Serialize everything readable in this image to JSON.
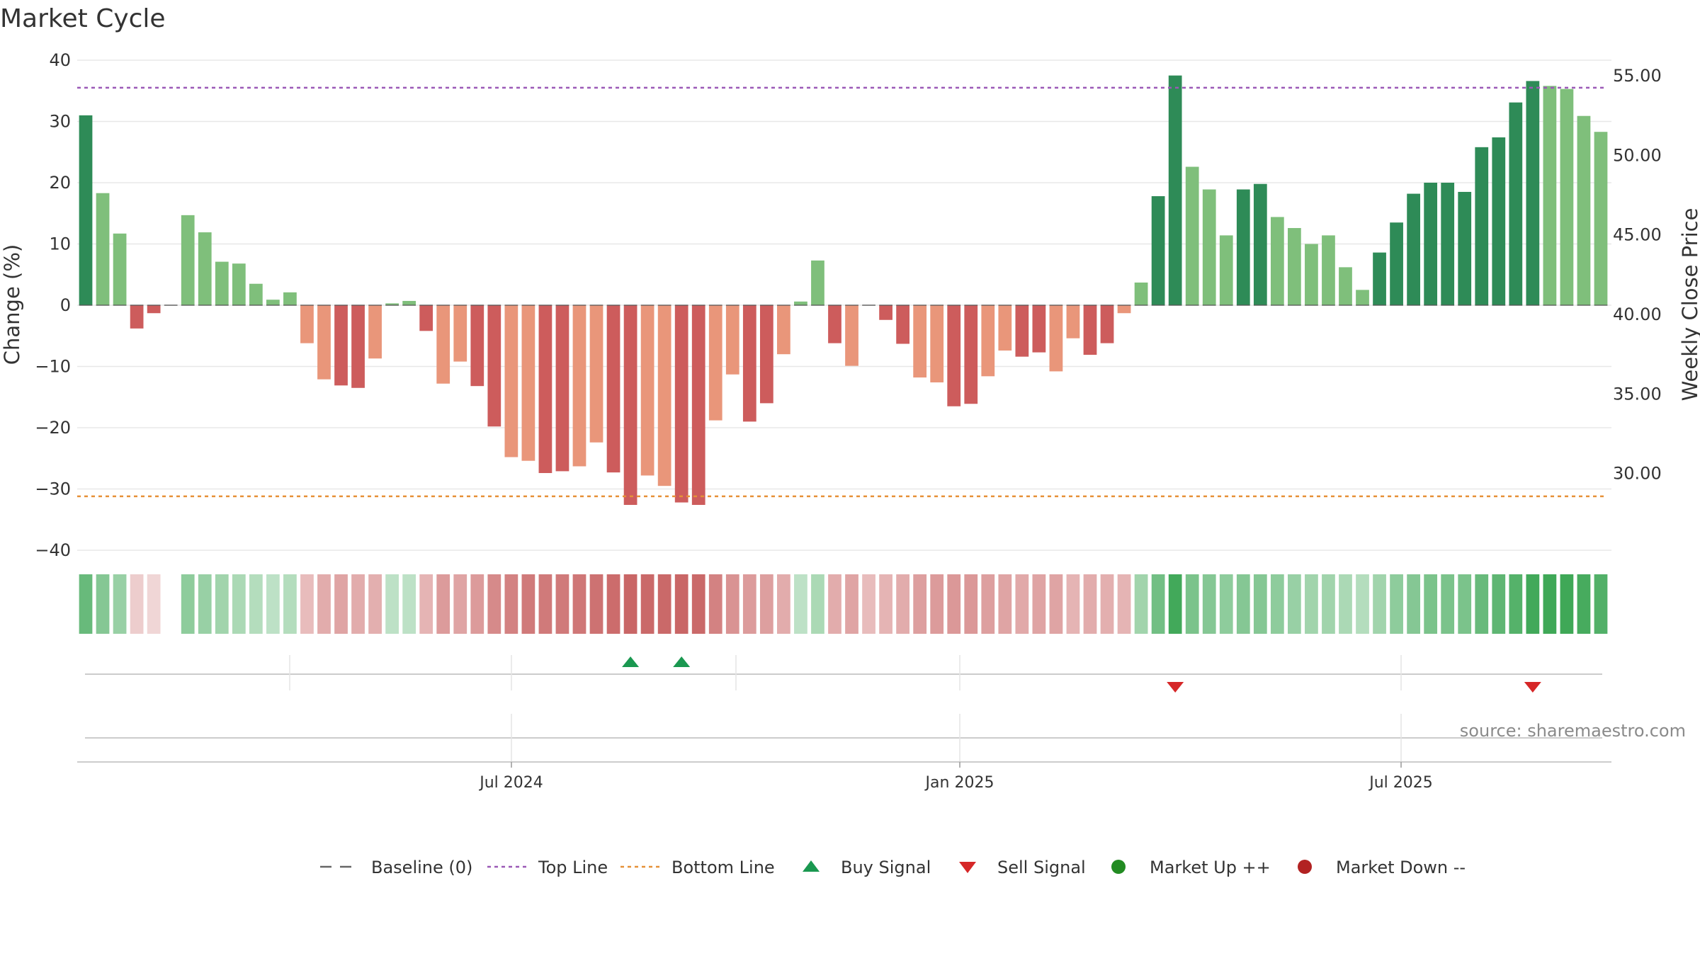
{
  "title": "Market Cycle",
  "source": "source: sharemaestro.com",
  "chart_data": {
    "type": "bar",
    "title": "Market Cycle",
    "ylabel_left": "Change (%)",
    "ylabel_right": "Weekly Close Price",
    "ylim_left": [
      -40,
      40
    ],
    "left_ticks": [
      "40",
      "30",
      "20",
      "10",
      "0",
      "−10",
      "−20",
      "−30",
      "−40"
    ],
    "ylim_right": [
      25.0,
      55.0
    ],
    "right_ticks": [
      "55.00",
      "50.00",
      "45.00",
      "40.00",
      "35.00",
      "30.00"
    ],
    "x_tick_labels": [
      "Jul 2024",
      "Jan 2025",
      "Jul 2025"
    ],
    "grid": true,
    "top_line": 35.5,
    "bottom_line": -31.2,
    "baseline": 0,
    "series": [
      {
        "name": "Change (%)",
        "values": [
          31.0,
          18.3,
          11.7,
          -3.8,
          -1.3,
          0.0,
          14.7,
          11.9,
          7.1,
          6.8,
          3.5,
          0.9,
          2.1,
          -6.2,
          -12.1,
          -13.1,
          -13.5,
          -8.7,
          0.3,
          0.7,
          -4.2,
          -12.8,
          -9.2,
          -13.2,
          -19.8,
          -24.8,
          -25.4,
          -27.4,
          -27.1,
          -26.3,
          -22.4,
          -27.3,
          -32.6,
          -27.8,
          -29.5,
          -32.2,
          -32.6,
          -18.8,
          -11.3,
          -19.0,
          -16.0,
          -8.0,
          0.6,
          7.3,
          -6.2,
          -9.9,
          0.0,
          -2.4,
          -6.3,
          -11.8,
          -12.6,
          -16.5,
          -16.1,
          -11.6,
          -7.4,
          -8.4,
          -7.7,
          -10.8,
          -5.4,
          -8.1,
          -6.2,
          -1.3,
          3.7,
          17.8,
          37.5,
          22.6,
          18.9,
          11.4,
          18.9,
          19.8,
          14.4,
          12.6,
          10.0,
          11.4,
          6.2,
          2.5,
          8.6,
          13.5,
          18.2,
          20.0,
          20.0,
          18.5,
          25.8,
          27.4,
          33.1,
          36.6,
          35.8,
          35.3,
          30.9,
          28.3
        ]
      }
    ],
    "heat_strip": [
      0.6,
      0.45,
      0.35,
      -0.1,
      -0.05,
      null,
      0.4,
      0.35,
      0.3,
      0.25,
      0.2,
      0.15,
      0.2,
      -0.2,
      -0.3,
      -0.35,
      -0.3,
      -0.28,
      0.15,
      0.15,
      -0.25,
      -0.4,
      -0.35,
      -0.4,
      -0.5,
      -0.55,
      -0.6,
      -0.6,
      -0.6,
      -0.62,
      -0.65,
      -0.68,
      -0.72,
      -0.7,
      -0.7,
      -0.72,
      -0.7,
      -0.55,
      -0.45,
      -0.4,
      -0.38,
      -0.3,
      0.15,
      0.25,
      -0.3,
      -0.35,
      -0.2,
      -0.25,
      -0.3,
      -0.38,
      -0.4,
      -0.42,
      -0.42,
      -0.38,
      -0.35,
      -0.32,
      -0.35,
      -0.35,
      -0.25,
      -0.3,
      -0.28,
      -0.25,
      0.3,
      0.55,
      0.8,
      0.5,
      0.45,
      0.4,
      0.45,
      0.45,
      0.4,
      0.35,
      0.3,
      0.3,
      0.25,
      0.2,
      0.3,
      0.4,
      0.45,
      0.5,
      0.5,
      0.5,
      0.6,
      0.65,
      0.7,
      0.8,
      0.82,
      0.82,
      0.78,
      0.72
    ],
    "buy_signals": [
      32,
      35
    ],
    "sell_signals": [
      64,
      85
    ],
    "colors": {
      "up_strong": "#2e8b57",
      "up_light": "#7fbf7b",
      "down_strong": "#cd5c5c",
      "down_light": "#e9967a",
      "top_line": "#9b59b6",
      "bottom_line": "#e69138",
      "buy": "#1a9850",
      "sell": "#d62728",
      "market_up": "#228b22",
      "market_down": "#b22222",
      "grid": "#e8e8e8",
      "baseline": "#666666"
    },
    "legend": [
      {
        "label": "Baseline (0)",
        "marker": "dash",
        "color": "#666666"
      },
      {
        "label": "Top Line",
        "marker": "dotted",
        "color": "#9b59b6"
      },
      {
        "label": "Bottom Line",
        "marker": "dotted",
        "color": "#e69138"
      },
      {
        "label": "Buy Signal",
        "marker": "triangle-up",
        "color": "#1a9850"
      },
      {
        "label": "Sell Signal",
        "marker": "triangle-down",
        "color": "#d62728"
      },
      {
        "label": "Market Up ++",
        "marker": "circle",
        "color": "#228b22"
      },
      {
        "label": "Market Down --",
        "marker": "circle",
        "color": "#b22222"
      }
    ],
    "legend_position": "bottom"
  }
}
